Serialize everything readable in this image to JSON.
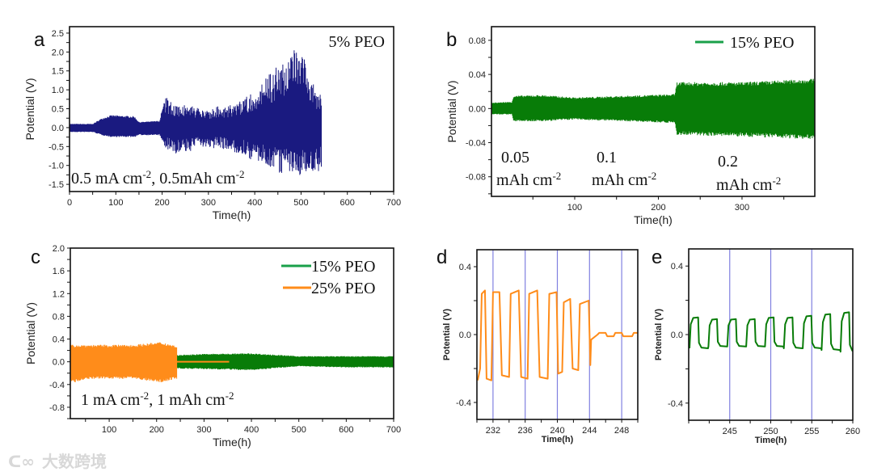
{
  "watermark": "大数跨境",
  "colors": {
    "navy": "#1a1a80",
    "green": "#087c08",
    "legend_green": "#1aa04a",
    "orange": "#ff8c1a",
    "guide": "#8080e0"
  },
  "chart_data": [
    {
      "id": "a",
      "letter": "a",
      "type": "line",
      "xlabel": "Time(h)",
      "ylabel": "Potential (V)",
      "xlim": [
        0,
        700
      ],
      "ylim": [
        -1.69,
        2.67
      ],
      "xticks": [
        "0",
        "100",
        "200",
        "300",
        "400",
        "500",
        "600",
        "700"
      ],
      "yticks": [
        "-1.5",
        "-1.0",
        "-0.5",
        "0.0",
        "0.5",
        "1.0",
        "1.5",
        "2.0",
        "2.5"
      ],
      "annotations": [
        {
          "segments": [
            {
              "t": "5% PEO"
            }
          ]
        },
        {
          "segments": [
            {
              "t": "0.5 mA cm"
            },
            {
              "t": "-2",
              "sup": true
            },
            {
              "t": ",  0.5mAh cm"
            },
            {
              "t": "-2",
              "sup": true
            }
          ]
        }
      ],
      "series": [
        {
          "name": "5% PEO",
          "color": "#1a1a80",
          "kind": "band",
          "spiky": true,
          "envelope": [
            [
              0,
              0.1,
              -0.12
            ],
            [
              50,
              0.1,
              -0.12
            ],
            [
              70,
              0.25,
              -0.2
            ],
            [
              90,
              0.33,
              -0.25
            ],
            [
              140,
              0.3,
              -0.25
            ],
            [
              150,
              0.15,
              -0.2
            ],
            [
              195,
              0.18,
              -0.2
            ],
            [
              205,
              0.85,
              -0.5
            ],
            [
              230,
              0.65,
              -0.7
            ],
            [
              260,
              0.6,
              -0.6
            ],
            [
              300,
              0.5,
              -0.5
            ],
            [
              350,
              0.6,
              -0.6
            ],
            [
              390,
              0.9,
              -0.8
            ],
            [
              420,
              1.2,
              -1.0
            ],
            [
              460,
              1.8,
              -1.2
            ],
            [
              500,
              2.3,
              -1.2
            ],
            [
              520,
              1.4,
              -1.1
            ],
            [
              545,
              0.85,
              -1.1
            ]
          ]
        }
      ]
    },
    {
      "id": "b",
      "letter": "b",
      "type": "line",
      "xlabel": "Time(h)",
      "ylabel": "Potential (V)",
      "xlim": [
        0.5,
        387
      ],
      "ylim": [
        -0.103,
        0.096
      ],
      "xticks": [
        "100",
        "200",
        "300"
      ],
      "yticks": [
        "-0.08",
        "-0.04",
        "0.00",
        "0.04",
        "0.08"
      ],
      "legend": [
        {
          "label": "15% PEO",
          "color": "#1aa04a"
        }
      ],
      "annotations": [
        {
          "segments": [
            {
              "t": "0.05"
            }
          ]
        },
        {
          "segments": [
            {
              "t": "mAh cm"
            },
            {
              "t": "-2",
              "sup": true
            }
          ]
        },
        {
          "segments": [
            {
              "t": "0.1"
            }
          ]
        },
        {
          "segments": [
            {
              "t": "mAh cm"
            },
            {
              "t": "-2",
              "sup": true
            }
          ]
        },
        {
          "segments": [
            {
              "t": "0.2"
            }
          ]
        },
        {
          "segments": [
            {
              "t": "mAh cm"
            },
            {
              "t": "-2",
              "sup": true
            }
          ]
        }
      ],
      "series": [
        {
          "name": "15% PEO",
          "color": "#087c08",
          "kind": "band",
          "envelope": [
            [
              0.5,
              0.007,
              -0.007
            ],
            [
              25,
              0.008,
              -0.007
            ],
            [
              27,
              0.015,
              -0.015
            ],
            [
              60,
              0.016,
              -0.015
            ],
            [
              100,
              0.013,
              -0.013
            ],
            [
              220,
              0.017,
              -0.017
            ],
            [
              222,
              0.031,
              -0.031
            ],
            [
              300,
              0.031,
              -0.033
            ],
            [
              387,
              0.035,
              -0.036
            ]
          ]
        }
      ]
    },
    {
      "id": "c",
      "letter": "c",
      "type": "line",
      "xlabel": "Time(h)",
      "ylabel": "Potential (V)",
      "xlim": [
        18,
        700
      ],
      "ylim": [
        -1.0,
        2.0
      ],
      "xticks": [
        "100",
        "200",
        "300",
        "400",
        "500",
        "600",
        "700"
      ],
      "yticks": [
        "-0.8",
        "-0.4",
        "0.0",
        "0.4",
        "0.8",
        "1.2",
        "1.6",
        "2.0"
      ],
      "legend": [
        {
          "label": "15% PEO",
          "color": "#1aa04a"
        },
        {
          "label": "25% PEO",
          "color": "#ff8c1a"
        }
      ],
      "annotations": [
        {
          "segments": [
            {
              "t": "1 mA cm"
            },
            {
              "t": "-2",
              "sup": true
            },
            {
              "t": ",  1 mAh cm"
            },
            {
              "t": "-2",
              "sup": true
            }
          ]
        }
      ],
      "series": [
        {
          "name": "15% PEO",
          "color": "#087c08",
          "kind": "band",
          "envelope": [
            [
              243,
              0.12,
              -0.12
            ],
            [
              300,
              0.14,
              -0.13
            ],
            [
              400,
              0.15,
              -0.15
            ],
            [
              500,
              0.1,
              -0.08
            ],
            [
              600,
              0.1,
              -0.1
            ],
            [
              700,
              0.1,
              -0.1
            ]
          ]
        },
        {
          "name": "25% PEO",
          "color": "#ff8c1a",
          "kind": "band",
          "envelope": [
            [
              18,
              0.3,
              -0.38
            ],
            [
              60,
              0.3,
              -0.3
            ],
            [
              150,
              0.3,
              -0.3
            ],
            [
              210,
              0.35,
              -0.36
            ],
            [
              243,
              0.28,
              -0.3
            ]
          ]
        },
        {
          "name": "25% PEO (short-circuit)",
          "color": "#ff8c1a",
          "kind": "line",
          "points": [
            [
              243,
              0.0
            ],
            [
              353,
              0.0
            ]
          ]
        }
      ]
    },
    {
      "id": "d",
      "letter": "d",
      "type": "line",
      "xlabel": "Time(h)",
      "ylabel": "Potential (V)",
      "xlim": [
        230,
        250
      ],
      "ylim": [
        -0.5,
        0.5
      ],
      "xticks": [
        "232",
        "236",
        "240",
        "244",
        "248"
      ],
      "yticks": [
        "-0.4",
        "0.0",
        "0.4"
      ],
      "guides": [
        232,
        236,
        240,
        244,
        248
      ],
      "series": [
        {
          "name": "25% PEO",
          "color": "#ff8c1a",
          "kind": "line",
          "points": [
            [
              230.1,
              -0.27
            ],
            [
              230.4,
              -0.2
            ],
            [
              230.6,
              0.24
            ],
            [
              231.0,
              0.26
            ],
            [
              231.2,
              -0.26
            ],
            [
              231.8,
              -0.27
            ],
            [
              232.0,
              0.25
            ],
            [
              232.8,
              0.25
            ],
            [
              233.1,
              -0.24
            ],
            [
              234.0,
              -0.25
            ],
            [
              234.2,
              0.24
            ],
            [
              235.2,
              0.26
            ],
            [
              235.5,
              -0.25
            ],
            [
              236.3,
              -0.26
            ],
            [
              236.5,
              0.24
            ],
            [
              237.5,
              0.26
            ],
            [
              237.8,
              -0.25
            ],
            [
              238.8,
              -0.26
            ],
            [
              239.0,
              0.24
            ],
            [
              239.9,
              0.25
            ],
            [
              240.1,
              -0.23
            ],
            [
              240.6,
              -0.22
            ],
            [
              240.8,
              0.19
            ],
            [
              241.6,
              0.21
            ],
            [
              241.9,
              -0.2
            ],
            [
              242.6,
              -0.21
            ],
            [
              242.8,
              0.18
            ],
            [
              243.9,
              0.2
            ],
            [
              244.1,
              -0.18
            ],
            [
              244.2,
              -0.03
            ],
            [
              245.0,
              0.0
            ],
            [
              245.2,
              0.01
            ],
            [
              246.0,
              0.01
            ],
            [
              246.2,
              -0.01
            ],
            [
              247.0,
              -0.01
            ],
            [
              247.2,
              0.01
            ],
            [
              248.0,
              0.01
            ],
            [
              248.2,
              -0.01
            ],
            [
              249.3,
              -0.01
            ],
            [
              249.5,
              0.01
            ],
            [
              250,
              0.01
            ]
          ]
        }
      ]
    },
    {
      "id": "e",
      "letter": "e",
      "type": "line",
      "xlabel": "Time(h)",
      "ylabel": "Potential (V)",
      "xlim": [
        240,
        260
      ],
      "ylim": [
        -0.5,
        0.5
      ],
      "xticks": [
        "245",
        "250",
        "255",
        "260"
      ],
      "yticks": [
        "-0.4",
        "0.0",
        "0.4"
      ],
      "guides": [
        245,
        250,
        255
      ],
      "series": [
        {
          "name": "15% PEO",
          "color": "#087c08",
          "kind": "cycles",
          "start": 240.1,
          "period": 2.3,
          "peaks": [
            0.1,
            0.09,
            0.09,
            0.09,
            0.1,
            0.1,
            0.11,
            0.12,
            0.13
          ],
          "troughs": [
            -0.08,
            -0.07,
            -0.07,
            -0.07,
            -0.07,
            -0.08,
            -0.08,
            -0.09,
            -0.1
          ]
        }
      ]
    }
  ]
}
